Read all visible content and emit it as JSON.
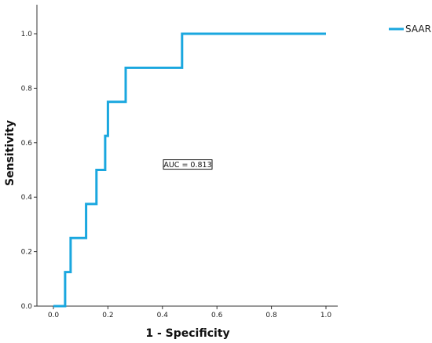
{
  "chart_data": {
    "type": "line",
    "title": "",
    "xlabel": "1 - Specificity",
    "ylabel": "Sensitivity",
    "xlim": [
      0,
      1.0
    ],
    "ylim": [
      0,
      1.0
    ],
    "x_ticks": [
      "0.0",
      "0.2",
      "0.4",
      "0.6",
      "0.8",
      "1.0"
    ],
    "y_ticks": [
      "0.0",
      "0.2",
      "0.4",
      "0.6",
      "0.8",
      "1.0"
    ],
    "grid": false,
    "legend_position": "top-right",
    "series": [
      {
        "name": "SAAR",
        "color": "#1aa7df",
        "x": [
          0.0,
          0.043,
          0.043,
          0.063,
          0.063,
          0.12,
          0.12,
          0.158,
          0.158,
          0.19,
          0.19,
          0.2,
          0.2,
          0.265,
          0.265,
          0.472,
          0.472,
          1.0
        ],
        "y": [
          0.0,
          0.0,
          0.125,
          0.125,
          0.25,
          0.25,
          0.375,
          0.375,
          0.5,
          0.5,
          0.625,
          0.625,
          0.75,
          0.75,
          0.875,
          0.875,
          1.0,
          1.0
        ]
      }
    ],
    "annotations": [
      {
        "text": "AUC = 0.813",
        "x": 0.5,
        "y": 0.52
      }
    ]
  }
}
